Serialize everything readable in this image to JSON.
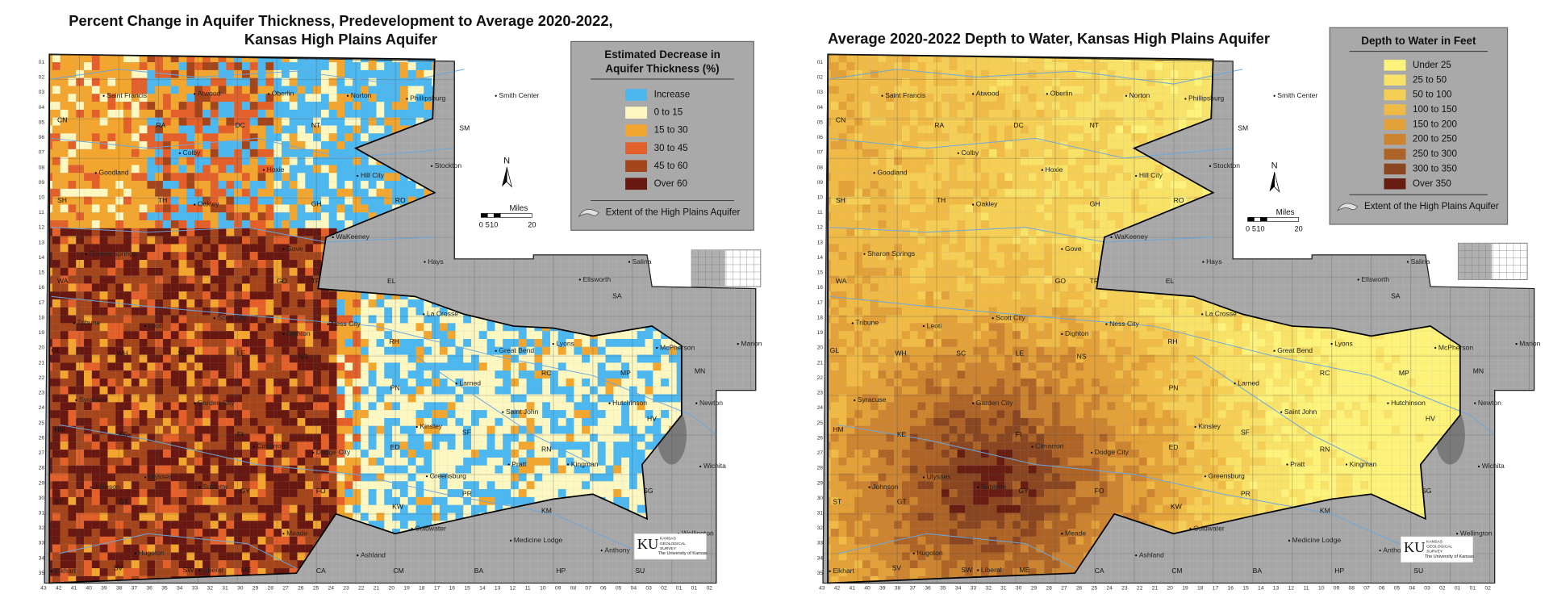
{
  "maps": [
    {
      "title_lines": [
        "Percent Change in Aquifer Thickness, Predevelopment to Average 2020-2022,",
        "Kansas High Plains Aquifer"
      ],
      "legend": {
        "title_lines": [
          "Estimated Decrease in",
          "Aquifer Thickness (%)"
        ],
        "items": [
          {
            "label": "Increase",
            "color": "#4db8f0"
          },
          {
            "label": "0 to 15",
            "color": "#fdf8c2"
          },
          {
            "label": "15 to 30",
            "color": "#f2a62f"
          },
          {
            "label": "30 to 45",
            "color": "#e4602a"
          },
          {
            "label": "45 to 60",
            "color": "#a5451c"
          },
          {
            "label": "Over 60",
            "color": "#681810"
          }
        ],
        "extent_label": "Extent of the High Plains Aquifer"
      }
    },
    {
      "title_lines": [
        "Average 2020-2022 Depth to Water, Kansas High Plains Aquifer"
      ],
      "legend": {
        "title_lines": [
          "Depth to Water in Feet"
        ],
        "items": [
          {
            "label": "Under 25",
            "color": "#fdf27a"
          },
          {
            "label": "25 to 50",
            "color": "#f9e268"
          },
          {
            "label": "50 to 100",
            "color": "#f5cf55"
          },
          {
            "label": "100 to 150",
            "color": "#efbb46"
          },
          {
            "label": "150 to 200",
            "color": "#e3a13a"
          },
          {
            "label": "200 to 250",
            "color": "#cd8430"
          },
          {
            "label": "250 to 300",
            "color": "#ae6427"
          },
          {
            "label": "300 to 350",
            "color": "#8a4620"
          },
          {
            "label": "Over 350",
            "color": "#681d12"
          }
        ],
        "extent_label": "Extent of the High Plains Aquifer"
      }
    }
  ],
  "north": "N",
  "scale": {
    "unit": "Miles",
    "ticks": [
      "0",
      "5",
      "10",
      "20"
    ]
  },
  "logo": {
    "mark": "KU",
    "lines": [
      "KANSAS",
      "GEOLOGICAL",
      "SURVEY",
      "The University of Kansas"
    ]
  },
  "rows": [
    "01",
    "02",
    "03",
    "04",
    "05",
    "06",
    "07",
    "08",
    "09",
    "10",
    "11",
    "12",
    "13",
    "14",
    "15",
    "16",
    "17",
    "18",
    "19",
    "20",
    "21",
    "22",
    "23",
    "24",
    "25",
    "26",
    "27",
    "28",
    "29",
    "30",
    "31",
    "32",
    "33",
    "34",
    "35"
  ],
  "columns": [
    "43",
    "42",
    "41",
    "40",
    "39",
    "38",
    "37",
    "36",
    "35",
    "34",
    "33",
    "32",
    "31",
    "30",
    "29",
    "28",
    "27",
    "26",
    "25",
    "24",
    "23",
    "22",
    "21",
    "20",
    "19",
    "18",
    "17",
    "16",
    "15",
    "14",
    "13",
    "12",
    "11",
    "10",
    "09",
    "08",
    "07",
    "06",
    "05",
    "04",
    "03",
    "02",
    "01",
    "01",
    "02"
  ],
  "towns": [
    "Saint Francis",
    "Atwood",
    "Oberlin",
    "Norton",
    "Phillipsburg",
    "Smith Center",
    "Goodland",
    "Colby",
    "Hoxie",
    "Hill City",
    "Stockton",
    "Oakley",
    "WaKeeney",
    "Hays",
    "Sharon Springs",
    "Gove",
    "Ellsworth",
    "Salina",
    "Tribune",
    "Leoti",
    "Scott City",
    "Dighton",
    "Ness City",
    "La Crosse",
    "Great Bend",
    "Lyons",
    "McPherson",
    "Marion",
    "Syracuse",
    "Garden City",
    "Larned",
    "Saint John",
    "Hutchinson",
    "Newton",
    "Kinsley",
    "Cimarron",
    "Dodge City",
    "Pratt",
    "Kingman",
    "Wichita",
    "Greensburg",
    "Johnson",
    "Ulysses",
    "Sublette",
    "Meade",
    "Coldwater",
    "Medicine Lodge",
    "Wellington",
    "Ashland",
    "Anthony",
    "Hugoton",
    "Liberal",
    "Elkhart"
  ],
  "counties": [
    "CN",
    "RA",
    "DC",
    "NT",
    "SM",
    "SH",
    "TH",
    "GH",
    "RO",
    "WA",
    "GL",
    "GO",
    "TR",
    "EL",
    "SA",
    "WH",
    "SC",
    "LE",
    "NS",
    "RH",
    "PN",
    "RC",
    "MP",
    "MN",
    "HV",
    "SF",
    "RN",
    "ED",
    "PR",
    "KM",
    "SG",
    "KW",
    "HM",
    "KE",
    "FI",
    "GY",
    "FO",
    "ST",
    "GT",
    "SV",
    "SW",
    "ME",
    "CA",
    "CM",
    "BA",
    "HP",
    "SU"
  ]
}
